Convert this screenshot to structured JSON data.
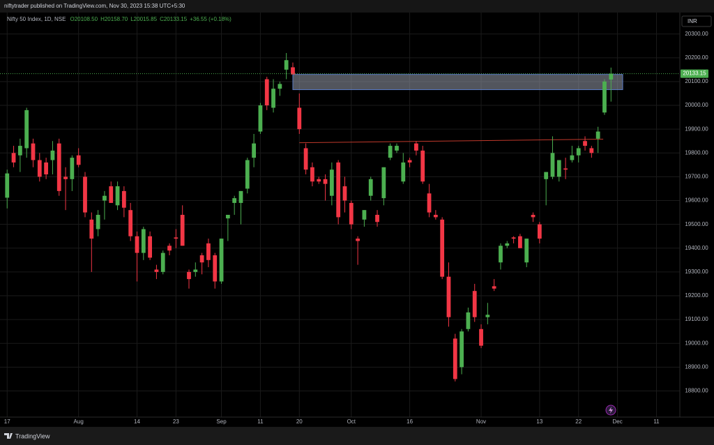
{
  "header": "niftytrader published on TradingView.com, Nov 30, 2023 15:38 UTC+5:30",
  "footer": "TradingView",
  "chart_data": {
    "type": "candlestick",
    "symbol": "Nifty 50 Index, 1D, NSE",
    "ohlc_text": [
      "O20108.50",
      "H20158.70",
      "L20015.85",
      "C20133.15",
      "+36.55 (+0.18%)"
    ],
    "currency": "INR",
    "up_color": "#4caf50",
    "down_color": "#f23645",
    "open": [
      19612,
      19800,
      19790,
      19820,
      19840,
      19770,
      19760,
      19770,
      19840,
      19700,
      19690,
      19790,
      19700,
      19520,
      19480,
      19600,
      19660,
      19580,
      19640,
      19560,
      19450,
      19380,
      19450,
      19310,
      19300,
      19410,
      19445,
      19540,
      19300,
      19300,
      19370,
      19420,
      19370,
      19260,
      19525,
      19590,
      19590,
      19650,
      19780,
      19890,
      20110,
      19990,
      20070,
      20150,
      20160,
      19990,
      19820,
      19740,
      19690,
      19690,
      19620,
      19760,
      19660,
      19590,
      19440,
      19520,
      19620,
      19540,
      19610,
      19780,
      19810,
      19680,
      19770,
      19840,
      19810,
      19630,
      19540,
      19520,
      19280,
      19020,
      18900,
      19060,
      19220,
      19060,
      19110,
      19240,
      19340,
      19410,
      19445,
      19450,
      19340,
      19540,
      19500,
      19690,
      19700,
      19700,
      19735,
      19770,
      19790,
      19850,
      19820,
      19860,
      19970,
      20108.5
    ],
    "high": [
      19730,
      19830,
      19860,
      19990,
      19860,
      19800,
      19780,
      19850,
      19860,
      19740,
      19790,
      19820,
      19720,
      19550,
      19560,
      19640,
      19680,
      19680,
      19660,
      19590,
      19470,
      19490,
      19470,
      19330,
      19390,
      19420,
      19480,
      19580,
      19310,
      19340,
      19380,
      19440,
      19380,
      19440,
      19540,
      19620,
      19640,
      19780,
      19880,
      20010,
      20120,
      20110,
      20100,
      20220,
      20180,
      20050,
      19840,
      19760,
      19700,
      19710,
      19760,
      19770,
      19700,
      19600,
      19450,
      19560,
      19700,
      19560,
      19740,
      19840,
      19840,
      19800,
      19780,
      19850,
      19830,
      19670,
      19560,
      19530,
      19340,
      19040,
      19060,
      19150,
      19250,
      19080,
      19170,
      19270,
      19420,
      19430,
      19450,
      19460,
      19440,
      19550,
      19510,
      19720,
      19870,
      19770,
      19780,
      19830,
      19830,
      19870,
      19830,
      19910,
      20110,
      20158.7
    ],
    "low": [
      19567,
      19740,
      19720,
      19780,
      19740,
      19680,
      19690,
      19710,
      19620,
      19560,
      19640,
      19740,
      19530,
      19300,
      19450,
      19520,
      19590,
      19560,
      19530,
      19430,
      19260,
      19350,
      19350,
      19270,
      19290,
      19370,
      19400,
      19410,
      19230,
      19280,
      19290,
      19320,
      19230,
      19250,
      19430,
      19540,
      19500,
      19630,
      19740,
      19880,
      19980,
      19970,
      20040,
      20110,
      20130,
      19880,
      19710,
      19660,
      19670,
      19600,
      19580,
      19500,
      19550,
      19480,
      19330,
      19490,
      19600,
      19490,
      19580,
      19770,
      19800,
      19670,
      19740,
      19790,
      19670,
      19530,
      19520,
      19270,
      19070,
      18840,
      18870,
      19050,
      19090,
      18980,
      19080,
      19220,
      19310,
      19400,
      19420,
      19400,
      19320,
      19510,
      19420,
      19580,
      19690,
      19680,
      19690,
      19760,
      19760,
      19810,
      19780,
      19800,
      19960,
      20015.85
    ],
    "close": [
      19714,
      19760,
      19830,
      19980,
      19770,
      19700,
      19710,
      19810,
      19640,
      19690,
      19780,
      19750,
      19550,
      19440,
      19540,
      19620,
      19590,
      19660,
      19570,
      19450,
      19380,
      19480,
      19360,
      19300,
      19380,
      19390,
      19440,
      19410,
      19270,
      19310,
      19340,
      19350,
      19260,
      19440,
      19540,
      19610,
      19640,
      19770,
      19840,
      20000,
      20000,
      20070,
      20090,
      20190,
      20130,
      19900,
      19730,
      19680,
      19680,
      19670,
      19730,
      19530,
      19600,
      19500,
      19430,
      19560,
      19690,
      19510,
      19740,
      19830,
      19830,
      19760,
      19760,
      19810,
      19680,
      19550,
      19530,
      19280,
      19110,
      18850,
      19050,
      19130,
      19110,
      18990,
      19120,
      19230,
      19410,
      19420,
      19440,
      19400,
      19440,
      19530,
      19440,
      19720,
      19800,
      19770,
      19730,
      19790,
      19820,
      19830,
      19800,
      19890,
      20100,
      20133.15
    ],
    "xlim": [
      -1.1,
      103.6
    ],
    "xticks": [
      {
        "value": 0,
        "label": "17"
      },
      {
        "value": 11,
        "label": "Aug"
      },
      {
        "value": 20,
        "label": "14"
      },
      {
        "value": 26,
        "label": "23"
      },
      {
        "value": 33,
        "label": "Sep"
      },
      {
        "value": 39,
        "label": "11"
      },
      {
        "value": 45,
        "label": "20"
      },
      {
        "value": 53,
        "label": "Oct"
      },
      {
        "value": 62,
        "label": "16"
      },
      {
        "value": 73,
        "label": "Nov"
      },
      {
        "value": 82,
        "label": "13"
      },
      {
        "value": 88,
        "label": "22"
      },
      {
        "value": 94,
        "label": "Dec"
      },
      {
        "value": 100,
        "label": "11"
      }
    ],
    "ylim": [
      18690,
      20390
    ],
    "yticks": [
      {
        "value": 18800,
        "label": "18800.00"
      },
      {
        "value": 18900,
        "label": "18900.00"
      },
      {
        "value": 19000,
        "label": "19000.00"
      },
      {
        "value": 19100,
        "label": "19100.00"
      },
      {
        "value": 19200,
        "label": "19200.00"
      },
      {
        "value": 19300,
        "label": "19300.00"
      },
      {
        "value": 19400,
        "label": "19400.00"
      },
      {
        "value": 19500,
        "label": "19500.00"
      },
      {
        "value": 19600,
        "label": "19600.00"
      },
      {
        "value": 19700,
        "label": "19700.00"
      },
      {
        "value": 19800,
        "label": "19800.00"
      },
      {
        "value": 19900,
        "label": "19900.00"
      },
      {
        "value": 20000,
        "label": "20000.00"
      },
      {
        "value": 20100,
        "label": "20100.00"
      },
      {
        "value": 20200,
        "label": "20200.00"
      },
      {
        "value": 20300,
        "label": "20300.00"
      }
    ],
    "grid": true,
    "last_price": 20133.15,
    "zone": {
      "x": [
        44,
        94.8
      ],
      "y": [
        20066,
        20130
      ],
      "color": "#5b7cc7"
    },
    "trend_line": {
      "x": [
        45,
        91.8
      ],
      "y": [
        19843,
        19858
      ],
      "color": "#c0392b"
    }
  }
}
